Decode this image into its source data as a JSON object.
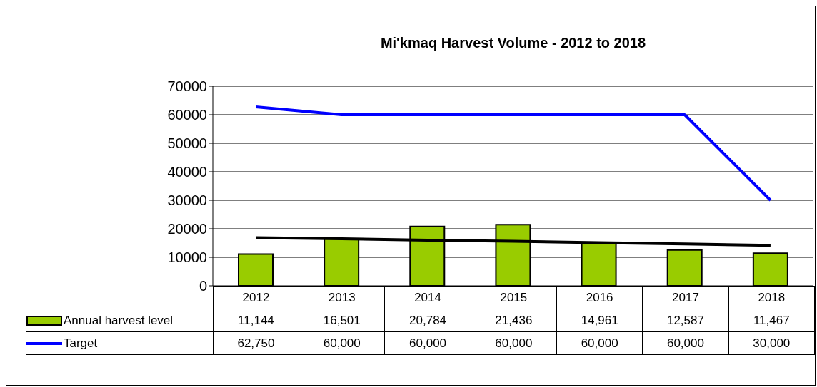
{
  "chart_data": {
    "type": "bar",
    "title": "Mi'kmaq Harvest Volume - 2012 to 2018",
    "categories": [
      "2012",
      "2013",
      "2014",
      "2015",
      "2016",
      "2017",
      "2018"
    ],
    "series": [
      {
        "name": "Annual harvest level",
        "color": "#99cc00",
        "values": [
          11144,
          16501,
          20784,
          21436,
          14961,
          12587,
          11467
        ],
        "value_labels": [
          "11,144",
          "16,501",
          "20,784",
          "21,436",
          "14,961",
          "12,587",
          "11,467"
        ]
      },
      {
        "name": "Target",
        "type": "line",
        "color": "#0000ff",
        "values": [
          62750,
          60000,
          60000,
          60000,
          60000,
          60000,
          30000
        ],
        "value_labels": [
          "62,750",
          "60,000",
          "60,000",
          "60,000",
          "60,000",
          "60,000",
          "30,000"
        ]
      },
      {
        "type": "line",
        "color": "#000000",
        "values": [
          16900,
          16500,
          16000,
          15600,
          15100,
          14700,
          14200
        ]
      }
    ],
    "ylim": [
      0,
      70000
    ],
    "yticks": [
      0,
      10000,
      20000,
      30000,
      40000,
      50000,
      60000,
      70000
    ],
    "grid": "y",
    "legend": "bottom",
    "marker": "none",
    "line_style": "solid"
  }
}
